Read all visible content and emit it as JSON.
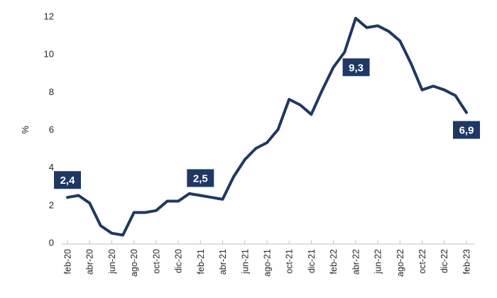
{
  "chart_data": {
    "type": "line",
    "title": "",
    "xlabel": "",
    "ylabel": "%",
    "ylim": [
      0,
      12
    ],
    "y_ticks": [
      0,
      2,
      4,
      6,
      8,
      10,
      12
    ],
    "grid": false,
    "legend": false,
    "x_tick_labels": [
      "feb-20",
      "abr-20",
      "jun-20",
      "ago-20",
      "oct-20",
      "dic-20",
      "feb-21",
      "abr-21",
      "jun-21",
      "ago-21",
      "oct-21",
      "dic-21",
      "feb-22",
      "abr-22",
      "jun-22",
      "ago-22",
      "oct-22",
      "dic-22",
      "feb-23"
    ],
    "x_tick_every_n_points": 2,
    "months": [
      "feb-20",
      "mar-20",
      "abr-20",
      "may-20",
      "jun-20",
      "jul-20",
      "ago-20",
      "sep-20",
      "oct-20",
      "nov-20",
      "dic-20",
      "ene-21",
      "feb-21",
      "mar-21",
      "abr-21",
      "may-21",
      "jun-21",
      "jul-21",
      "ago-21",
      "sep-21",
      "oct-21",
      "nov-21",
      "dic-21",
      "ene-22",
      "feb-22",
      "mar-22",
      "abr-22",
      "may-22",
      "jun-22",
      "jul-22",
      "ago-22",
      "sep-22",
      "oct-22",
      "nov-22",
      "dic-22",
      "ene-23",
      "feb-23"
    ],
    "values": [
      2.4,
      2.5,
      2.1,
      0.9,
      0.5,
      0.4,
      1.6,
      1.6,
      1.7,
      2.2,
      2.2,
      2.6,
      2.5,
      2.4,
      2.3,
      3.5,
      4.4,
      5.0,
      5.3,
      6.0,
      7.6,
      7.3,
      6.8,
      8.1,
      9.3,
      10.1,
      11.9,
      11.4,
      11.5,
      11.2,
      10.7,
      9.5,
      8.1,
      8.3,
      8.1,
      7.8,
      6.9
    ],
    "point_labels": [
      {
        "index": 0,
        "text": "2,4",
        "placement": "above"
      },
      {
        "index": 12,
        "text": "2,5",
        "placement": "above"
      },
      {
        "index": 24,
        "text": "9,3",
        "placement": "right"
      },
      {
        "index": 36,
        "text": "6,9",
        "placement": "below"
      }
    ],
    "colors": {
      "line": "#1F3864",
      "label_box": "#1F3864",
      "label_text": "#FFFFFF",
      "axis_line": "#BFBFBF",
      "tick_text": "#262626"
    }
  }
}
